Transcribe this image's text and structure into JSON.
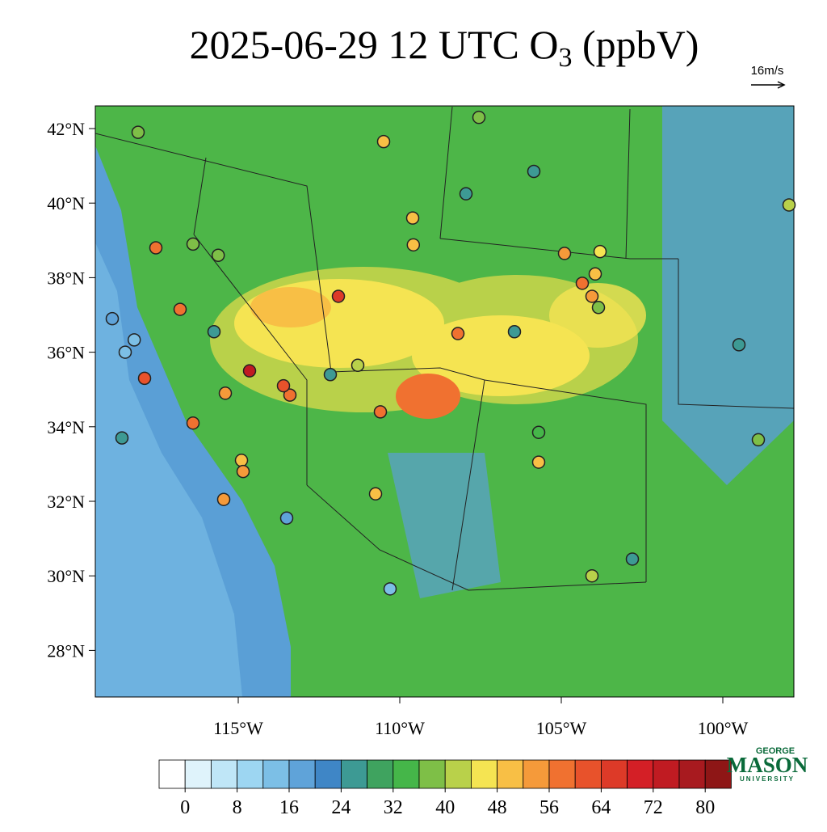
{
  "title_prefix": "2025-06-29 12 UTC O",
  "title_subscript": "3",
  "title_suffix": " (ppbV)",
  "wind_reference": "16m/s",
  "map": {
    "lat_ticks": [
      {
        "value": 42,
        "label": "42°N"
      },
      {
        "value": 40,
        "label": "40°N"
      },
      {
        "value": 38,
        "label": "38°N"
      },
      {
        "value": 36,
        "label": "36°N"
      },
      {
        "value": 34,
        "label": "34°N"
      },
      {
        "value": 32,
        "label": "32°N"
      },
      {
        "value": 30,
        "label": "30°N"
      },
      {
        "value": 28,
        "label": "28°N"
      }
    ],
    "lon_ticks": [
      {
        "value": -115,
        "label": "115°W"
      },
      {
        "value": -110,
        "label": "110°W"
      },
      {
        "value": -105,
        "label": "105°W"
      },
      {
        "value": -100,
        "label": "100°W"
      }
    ]
  },
  "colorbar": {
    "ticks": [
      0,
      8,
      16,
      24,
      32,
      40,
      48,
      56,
      64,
      72,
      80
    ],
    "colors": [
      "#ffffff",
      "#dff3fb",
      "#bfe6f7",
      "#9dd6f2",
      "#7cbfe6",
      "#5fa3d9",
      "#3f86c6",
      "#3d9a94",
      "#3fa35f",
      "#45b649",
      "#7ebf47",
      "#b9d14a",
      "#f5e452",
      "#f8bf45",
      "#f59a3a",
      "#f07130",
      "#e8522b",
      "#dd3a28",
      "#d41f26",
      "#c01b22",
      "#a81a1f",
      "#8e1616"
    ]
  },
  "stations": [
    {
      "lon": -117.55,
      "lat": 38.8,
      "value": 58
    },
    {
      "lon": -114.65,
      "lat": 35.5,
      "value": 72
    },
    {
      "lon": -111.9,
      "lat": 37.5,
      "value": 64
    },
    {
      "lon": -115.75,
      "lat": 36.55,
      "value": 24
    },
    {
      "lon": -116.8,
      "lat": 37.15,
      "value": 58
    },
    {
      "lon": -117.9,
      "lat": 35.3,
      "value": 60
    },
    {
      "lon": -116.4,
      "lat": 34.1,
      "value": 58
    },
    {
      "lon": -115.4,
      "lat": 34.9,
      "value": 54
    },
    {
      "lon": -114.9,
      "lat": 33.1,
      "value": 48
    },
    {
      "lon": -114.85,
      "lat": 32.8,
      "value": 54
    },
    {
      "lon": -115.45,
      "lat": 32.05,
      "value": 52
    },
    {
      "lon": -113.4,
      "lat": 34.85,
      "value": 58
    },
    {
      "lon": -113.6,
      "lat": 35.1,
      "value": 62
    },
    {
      "lon": -110.6,
      "lat": 34.4,
      "value": 58
    },
    {
      "lon": -108.2,
      "lat": 36.5,
      "value": 56
    },
    {
      "lon": -104.35,
      "lat": 37.85,
      "value": 58
    },
    {
      "lon": -104.05,
      "lat": 37.5,
      "value": 54
    },
    {
      "lon": -103.95,
      "lat": 38.1,
      "value": 48
    },
    {
      "lon": -104.9,
      "lat": 38.65,
      "value": 52
    },
    {
      "lon": -107.55,
      "lat": 42.3,
      "value": 36
    },
    {
      "lon": -110.5,
      "lat": 41.65,
      "value": 48
    },
    {
      "lon": -109.6,
      "lat": 39.6,
      "value": 48
    },
    {
      "lon": -109.58,
      "lat": 38.88,
      "value": 48
    },
    {
      "lon": -118.1,
      "lat": 41.9,
      "value": 36
    },
    {
      "lon": -107.95,
      "lat": 40.25,
      "value": 24
    },
    {
      "lon": -105.85,
      "lat": 40.85,
      "value": 24
    },
    {
      "lon": -99.5,
      "lat": 36.2,
      "value": 24
    },
    {
      "lon": -98.9,
      "lat": 33.65,
      "value": 36
    },
    {
      "lon": -97.95,
      "lat": 39.95,
      "value": 40
    },
    {
      "lon": -118.5,
      "lat": 36.0,
      "value": 14
    },
    {
      "lon": -118.22,
      "lat": 36.33,
      "value": 14
    },
    {
      "lon": -110.3,
      "lat": 29.65,
      "value": 14
    },
    {
      "lon": -110.75,
      "lat": 32.2,
      "value": 48
    },
    {
      "lon": -112.15,
      "lat": 35.4,
      "value": 24
    },
    {
      "lon": -105.7,
      "lat": 33.05,
      "value": 48
    },
    {
      "lon": -106.45,
      "lat": 36.55,
      "value": 24
    },
    {
      "lon": -105.7,
      "lat": 33.85,
      "value": 34
    },
    {
      "lon": -103.8,
      "lat": 38.7,
      "value": 44
    },
    {
      "lon": -103.85,
      "lat": 37.2,
      "value": 36
    },
    {
      "lon": -104.05,
      "lat": 30.0,
      "value": 40
    },
    {
      "lon": -102.8,
      "lat": 30.45,
      "value": 24
    },
    {
      "lon": -113.5,
      "lat": 31.55,
      "value": 18
    },
    {
      "lon": -111.3,
      "lat": 35.65,
      "value": 42
    },
    {
      "lon": -116.4,
      "lat": 38.9,
      "value": 38
    },
    {
      "lon": -115.62,
      "lat": 38.6,
      "value": 36
    },
    {
      "lon": -118.6,
      "lat": 33.7,
      "value": 26
    },
    {
      "lon": -118.9,
      "lat": 36.9,
      "value": 16
    }
  ],
  "logo": {
    "top": "GEORGE",
    "main": "MASON",
    "bottom": "UNIVERSITY"
  }
}
